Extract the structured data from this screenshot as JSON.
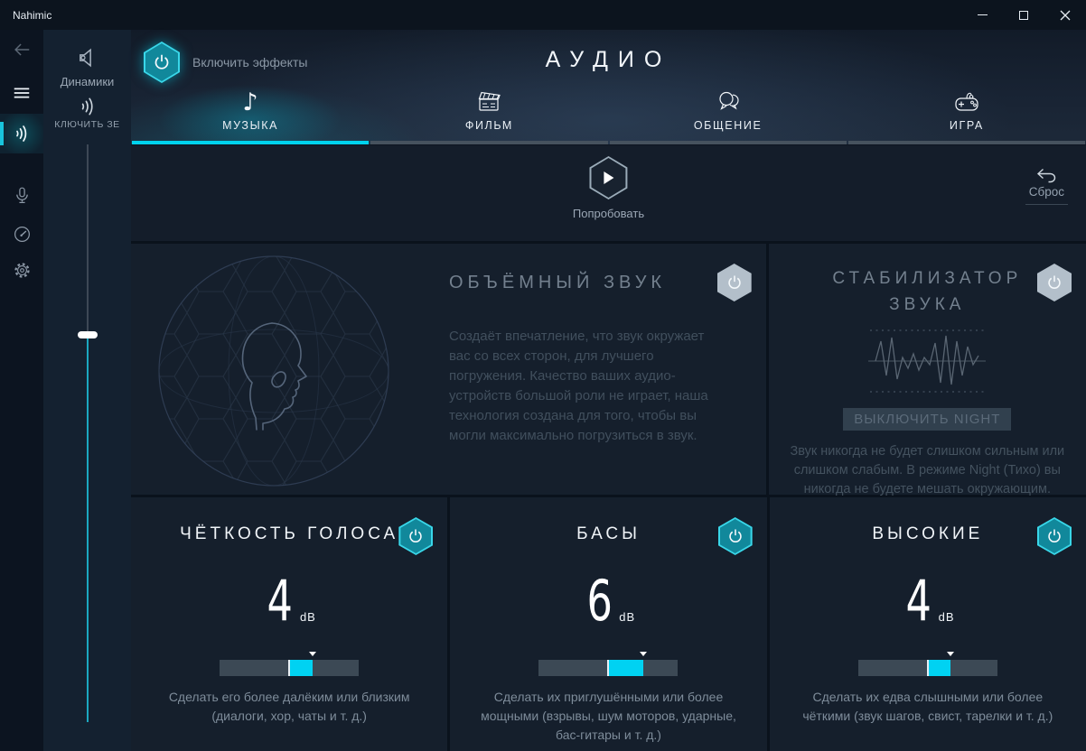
{
  "window": {
    "title": "Nahimic"
  },
  "sidebar": {
    "items": [
      {
        "id": "back",
        "icon": "arrow-left-icon",
        "active": false
      },
      {
        "id": "menu",
        "icon": "hamburger-icon",
        "active": false
      },
      {
        "id": "audio",
        "icon": "sound-waves-icon",
        "active": true
      },
      {
        "id": "microphone",
        "icon": "microphone-icon",
        "active": false
      },
      {
        "id": "dashboard",
        "icon": "gauge-icon",
        "active": false
      },
      {
        "id": "settings",
        "icon": "gear-icon",
        "active": false
      }
    ]
  },
  "device_panel": {
    "device_name": "Динамики",
    "scroll_text": "КЛЮЧИТЬ ЗЕ",
    "volume_handle_percent_from_top": 33
  },
  "header": {
    "effects_toggle_label": "Включить эффекты",
    "effects_enabled": true,
    "page_title": "АУДИО",
    "tabs": [
      {
        "label": "МУЗЫКА",
        "active": true
      },
      {
        "label": "ФИЛЬМ",
        "active": false
      },
      {
        "label": "ОБЩЕНИЕ",
        "active": false
      },
      {
        "label": "ИГРА",
        "active": false
      }
    ]
  },
  "preview": {
    "try_label": "Попробовать",
    "reset_label": "Сброс"
  },
  "cards": {
    "surround": {
      "title": "ОБЪЁМНЫЙ ЗВУК",
      "enabled": false,
      "description": "Создаёт впечатление, что звук окружает вас со всех сторон, для лучшего погружения. Качество ваших аудио-устройств большой роли не играет, наша технология создана для того, чтобы вы могли максимально погрузиться в звук."
    },
    "stabilizer": {
      "title_line1": "СТАБИЛИЗАТОР",
      "title_line2": "ЗВУКА",
      "enabled": false,
      "night_button_label": "ВЫКЛЮЧИТЬ NIGHT",
      "description": "Звук никогда не будет слишком сильным или слишком слабым. В режиме Night (Тихо) вы никогда не будете мешать окружающим."
    },
    "voice": {
      "title": "ЧЁТКОСТЬ ГОЛОСА",
      "enabled": true,
      "value": "4",
      "unit": "dB",
      "slider": {
        "min": -12,
        "max": 12,
        "value": 4
      },
      "description": "Сделать его более далёким или близким (диалоги, хор, чаты и т. д.)"
    },
    "bass": {
      "title": "БАСЫ",
      "enabled": true,
      "value": "6",
      "unit": "dB",
      "slider": {
        "min": -12,
        "max": 12,
        "value": 6
      },
      "description": "Сделать их приглушёнными или более мощными (взрывы, шум моторов, ударные, бас-гитары и т. д.)"
    },
    "treble": {
      "title": "ВЫСОКИЕ",
      "enabled": true,
      "value": "4",
      "unit": "dB",
      "slider": {
        "min": -12,
        "max": 12,
        "value": 4
      },
      "description": "Сделать их едва слышными или более чёткими (звук шагов, свист, тарелки и т. д.)"
    }
  },
  "colors": {
    "accent_cyan": "#00d3ee",
    "teal_button_fill": "#11889b",
    "card_background": "#151f2c",
    "eq_track": "#3c4955"
  },
  "icons": {
    "music_note": "♪"
  }
}
